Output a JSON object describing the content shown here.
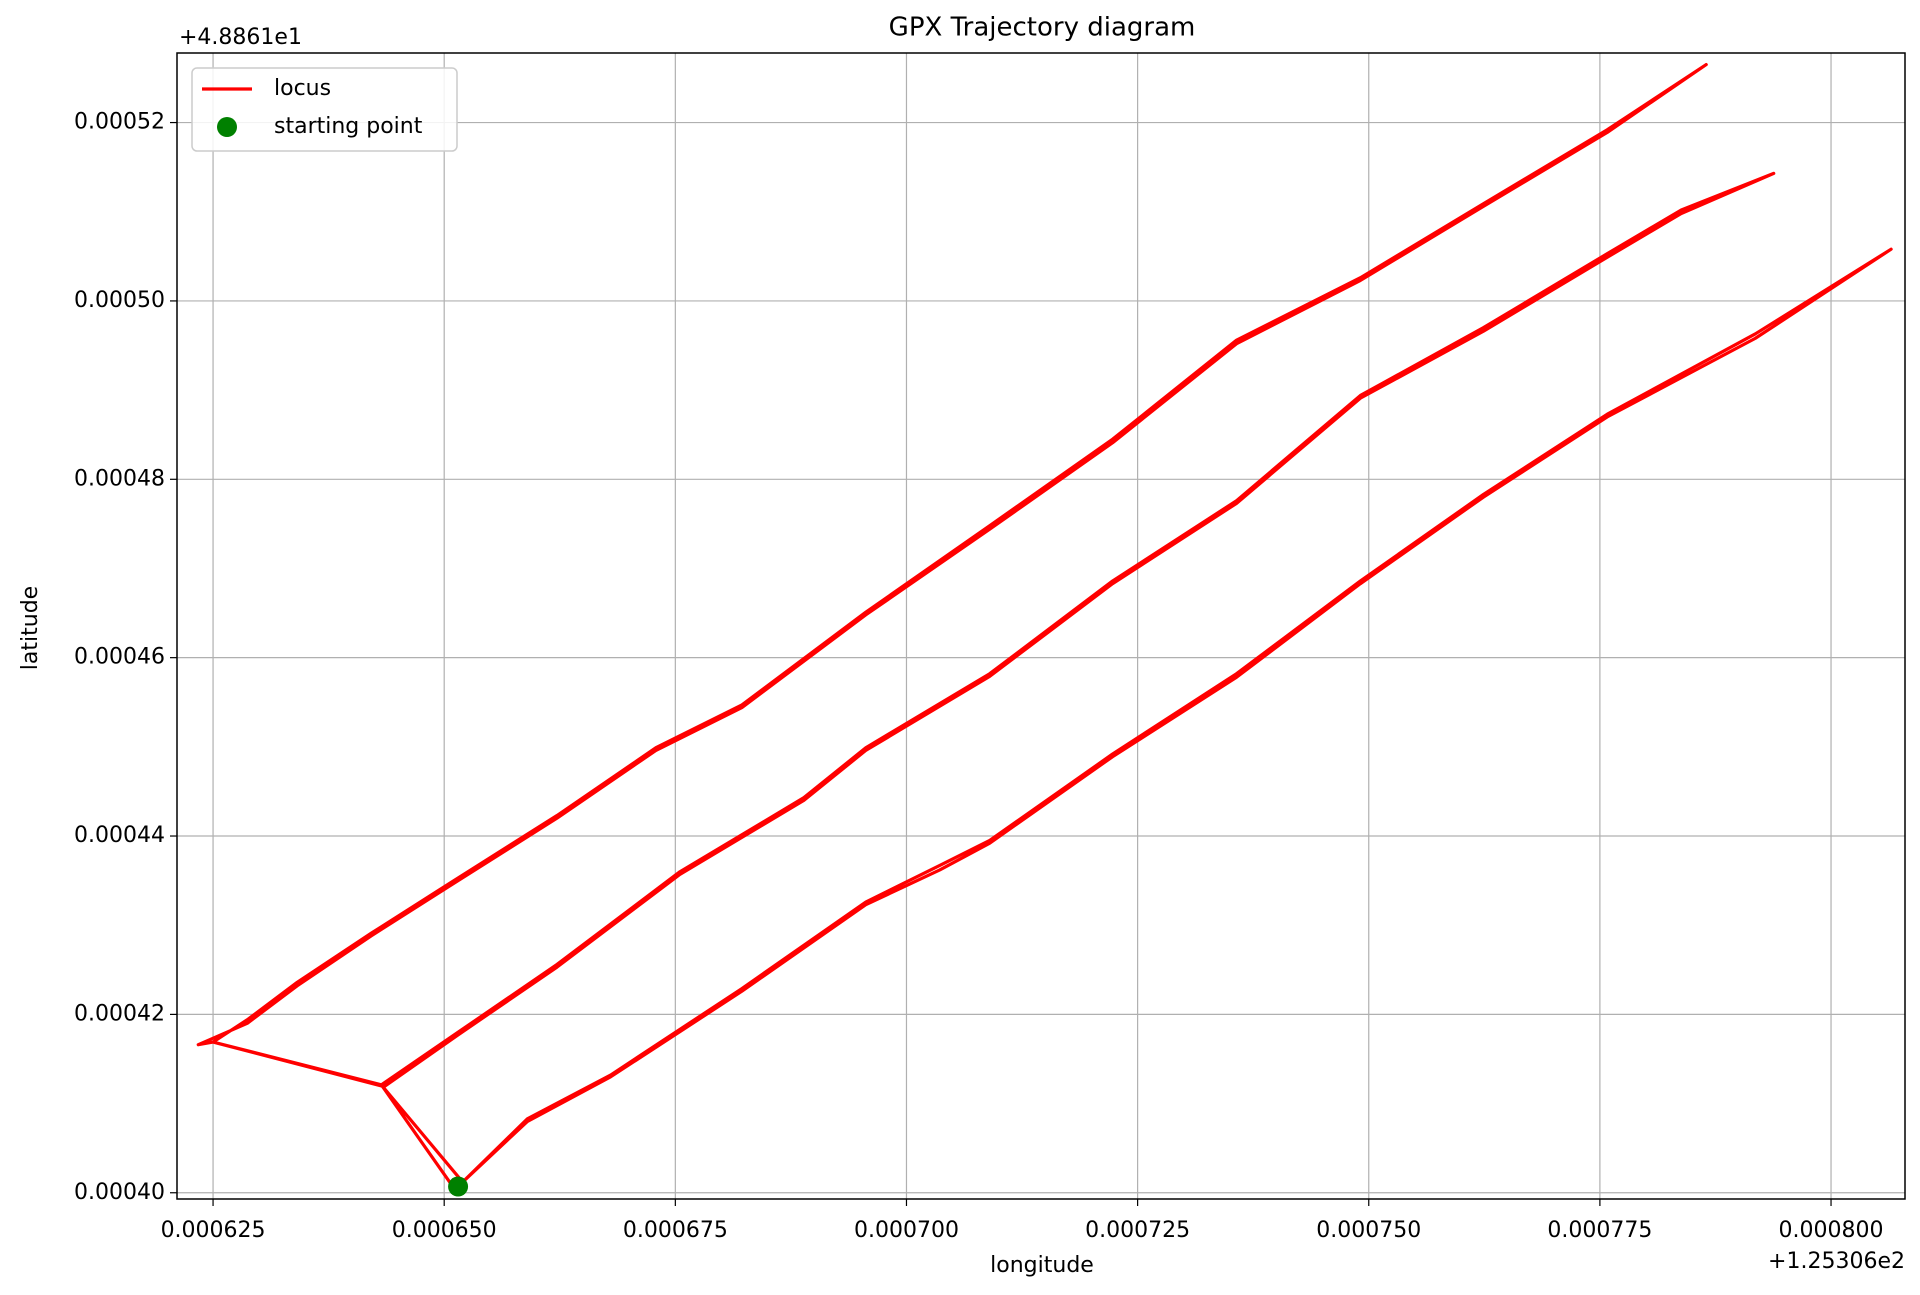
{
  "chart_data": {
    "type": "line",
    "title": "GPX Trajectory diagram",
    "xlabel": "longitude",
    "ylabel": "latitude",
    "x_offset": "+1.25306e2",
    "y_offset": "+4.8861e1",
    "xlim": [
      0.0006211,
      0.000808
    ],
    "ylim": [
      0.0003993,
      0.0005278
    ],
    "xticks": [
      0.000625,
      {
        "value": 0.00065,
        "label": "0.000650"
      },
      0.000675,
      {
        "value": 0.0007,
        "label": "0.000700"
      },
      0.000725,
      {
        "value": 0.00075,
        "label": "0.000750"
      },
      0.000775,
      {
        "value": 0.0008,
        "label": "0.000800"
      }
    ],
    "yticks": [
      {
        "value": 0.0004,
        "label": "0.00040"
      },
      0.00042,
      0.00044,
      0.00046,
      0.00048,
      {
        "value": 0.0005,
        "label": "0.00050"
      },
      0.00052
    ],
    "grid": true,
    "legend": "upper left",
    "series": [
      {
        "name": "locus",
        "color": "#ff0000",
        "type": "line",
        "x": [
          0.0006515,
          0.000659,
          0.000668,
          0.0006822,
          0.0006956,
          0.0007036,
          0.000709,
          0.0007223,
          0.0007357,
          0.0007491,
          0.0007624,
          0.0007758,
          0.0007918,
          0.0008065,
          0.0007918,
          0.0007758,
          0.0007624,
          0.0007491,
          0.0007357,
          0.0007223,
          0.000709,
          0.0007036,
          0.0006956,
          0.0006822,
          0.000668,
          0.000659,
          0.000652,
          0.0006432,
          0.0006515,
          0.0006622,
          0.0006755,
          0.0006889,
          0.0006956,
          0.000709,
          0.0007223,
          0.0007357,
          0.0007491,
          0.0007624,
          0.0007758,
          0.0007838,
          0.0007938,
          0.0007838,
          0.0007758,
          0.0007624,
          0.0007491,
          0.0007357,
          0.0007223,
          0.000709,
          0.0006956,
          0.0006889,
          0.0006755,
          0.0006622,
          0.0006515,
          0.0006435,
          0.000625,
          0.0006287,
          0.0006341,
          0.0006421,
          0.0006515,
          0.0006622,
          0.0006729,
          0.0006822,
          0.0006956,
          0.000709,
          0.0007223,
          0.0007357,
          0.0007491,
          0.0007624,
          0.0007758,
          0.0007865,
          0.0007758,
          0.0007624,
          0.0007491,
          0.0007357,
          0.0007223,
          0.000709,
          0.0006956,
          0.0006822,
          0.0006729,
          0.0006622,
          0.0006515,
          0.0006421,
          0.0006341,
          0.0006287,
          0.0006234,
          0.000625,
          0.0006432,
          0.0006512
        ],
        "values": [
          0.0004007,
          0.0004083,
          0.0004132,
          0.0004229,
          0.0004326,
          0.0004367,
          0.0004395,
          0.0004492,
          0.0004582,
          0.0004686,
          0.0004783,
          0.0004873,
          0.0004963,
          0.0005058,
          0.0004958,
          0.000487,
          0.000478,
          0.0004683,
          0.0004578,
          0.0004489,
          0.0004392,
          0.0004362,
          0.0004323,
          0.0004226,
          0.000413,
          0.000408,
          0.0004012,
          0.0004121,
          0.000418,
          0.0004256,
          0.000436,
          0.0004443,
          0.0004499,
          0.0004582,
          0.0004686,
          0.0004776,
          0.0004894,
          0.000497,
          0.0005053,
          0.0005102,
          0.0005143,
          0.0005098,
          0.0005049,
          0.0004966,
          0.0004891,
          0.0004773,
          0.0004683,
          0.0004579,
          0.0004496,
          0.000444,
          0.0004357,
          0.0004253,
          0.0004177,
          0.0004119,
          0.0004169,
          0.0004194,
          0.0004236,
          0.0004291,
          0.0004353,
          0.0004423,
          0.0004499,
          0.0004547,
          0.0004651,
          0.0004748,
          0.0004845,
          0.0004956,
          0.0005026,
          0.0005109,
          0.0005192,
          0.0005265,
          0.0005189,
          0.0005106,
          0.0005023,
          0.0004952,
          0.0004841,
          0.0004744,
          0.0004648,
          0.0004544,
          0.0004496,
          0.000442,
          0.000435,
          0.0004288,
          0.0004232,
          0.000419,
          0.0004166,
          0.0004169,
          0.0004121,
          0.0004003
        ]
      },
      {
        "name": "starting point",
        "color": "#008000",
        "type": "scatter",
        "x": [
          0.0006515
        ],
        "values": [
          0.0004007
        ]
      }
    ]
  }
}
